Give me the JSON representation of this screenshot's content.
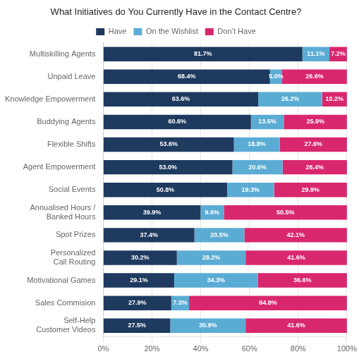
{
  "chart_data": {
    "type": "bar",
    "title": "What Initiatives do You Currently Have in the Contact Centre?",
    "orientation": "horizontal",
    "stacked": true,
    "data_labels": true,
    "grid": true,
    "legend": "top",
    "categories": [
      "Multiskilling Agents",
      "Unpaid Leave",
      "Knowledge Empowerment",
      "Buddying Agents",
      "Flexible Shifts",
      "Agent Empowerment",
      "Social Events",
      "Annualised Hours /\nBanked Hours",
      "Spot Prizes",
      "Personalized\nCall Routing",
      "Motivational Games",
      "Sales Commision",
      "Self-Help\nCustomer Videos"
    ],
    "series": [
      {
        "name": "Have",
        "color": "#1e3a5f",
        "values": [
          81.7,
          68.4,
          63.6,
          60.6,
          53.6,
          53.0,
          50.8,
          39.9,
          37.4,
          30.2,
          29.1,
          27.9,
          27.5
        ],
        "value_labels": [
          "81.7%",
          "68.4%",
          "63.6%",
          "60.6%",
          "53.6%",
          "53.0%",
          "50.8%",
          "39.9%",
          "37.4%",
          "30.2%",
          "29.1%",
          "27.9%",
          "27.5%"
        ]
      },
      {
        "name": "On the Wishlist",
        "color": "#5bacd4",
        "values": [
          11.1,
          5.0,
          26.2,
          13.5,
          18.8,
          20.6,
          19.3,
          9.6,
          20.5,
          28.2,
          34.3,
          7.3,
          30.9
        ],
        "value_labels": [
          "11.1%",
          "5.0%",
          "26.2%",
          "13.5%",
          "18.8%",
          "20.6%",
          "19.3%",
          "9.6%",
          "20.5%",
          "28.2%",
          "34.3%",
          "7.3%",
          "30.9%"
        ]
      },
      {
        "name": "Don’t Have",
        "color": "#d9276e",
        "values": [
          7.2,
          26.6,
          10.2,
          25.9,
          27.6,
          26.4,
          29.9,
          50.5,
          42.1,
          41.6,
          36.6,
          64.8,
          41.6
        ],
        "value_labels": [
          "7.2%",
          "26.6%",
          "10.2%",
          "25.9%",
          "27.6%",
          "26.4%",
          "29.9%",
          "50.5%",
          "42.1%",
          "41.6%",
          "36.6%",
          "64.8%",
          "41.6%"
        ]
      }
    ],
    "xlim": [
      0,
      100
    ],
    "xticks": [
      {
        "value": 0,
        "label": "0%"
      },
      {
        "value": 20,
        "label": "20%"
      },
      {
        "value": 40,
        "label": "40%"
      },
      {
        "value": 60,
        "label": "60%"
      },
      {
        "value": 80,
        "label": "80%"
      },
      {
        "value": 100,
        "label": "100%"
      }
    ]
  }
}
